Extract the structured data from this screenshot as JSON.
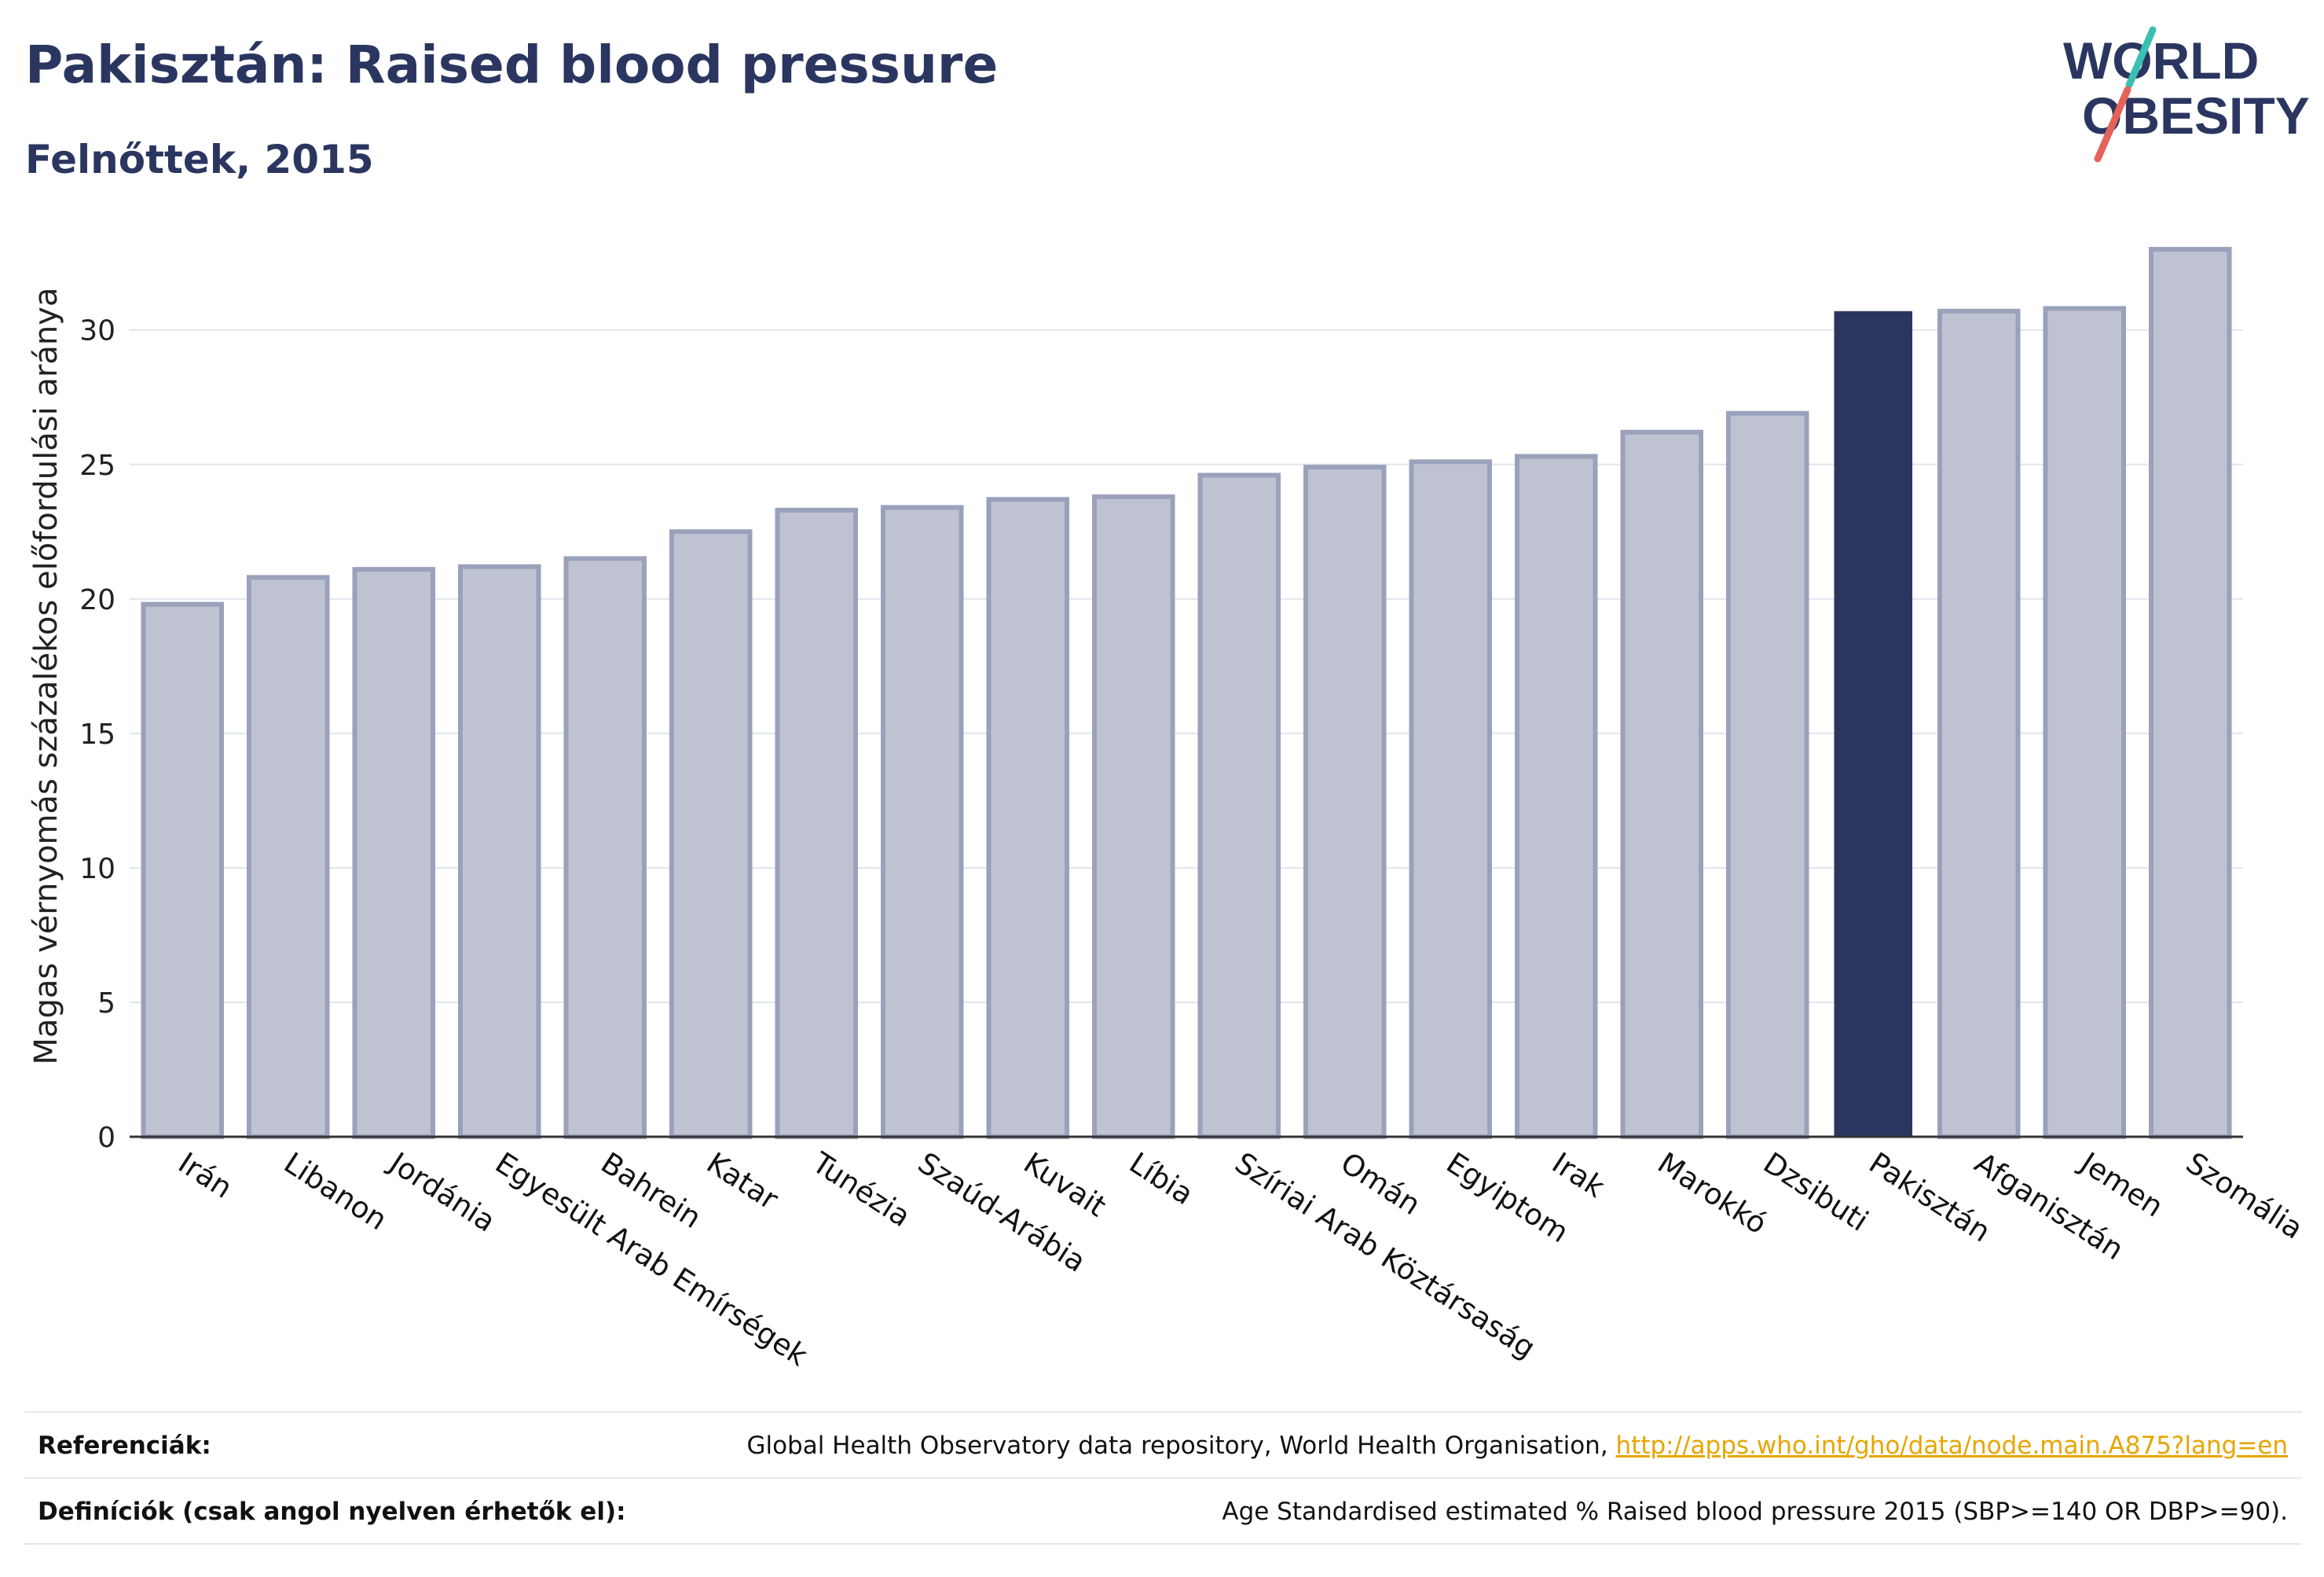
{
  "header": {
    "title": "Pakisztán: Raised blood pressure",
    "subtitle": "Felnőttek, 2015"
  },
  "logo": {
    "line1": "WORLD",
    "line2": "OBESITY",
    "colors": {
      "text": "#2b3660",
      "slash_top": "#3bbfb4",
      "slash_bottom": "#e5635a"
    }
  },
  "chart_data": {
    "type": "bar",
    "ylabel": "Magas vérnyomás százalékos előfordulási aránya",
    "xlabel": "",
    "ylim": [
      0,
      33.5
    ],
    "yticks": [
      0,
      5,
      10,
      15,
      20,
      25,
      30
    ],
    "grid": true,
    "highlight": "Pakisztán",
    "colors": {
      "bar_fill": "#bfc3d1",
      "bar_stroke": "#9aa1bb",
      "highlight": "#2b3660",
      "grid": "#e3e5ec",
      "axis": "#333333"
    },
    "categories": [
      "Irán",
      "Libanon",
      "Jordánia",
      "Egyesült Arab Emírségek",
      "Bahrein",
      "Katar",
      "Tunézia",
      "Szaúd-Arábia",
      "Kuvait",
      "Líbia",
      "Szíriai Arab Köztársaság",
      "Omán",
      "Egyiptom",
      "Irak",
      "Marokkó",
      "Dzsibuti",
      "Pakisztán",
      "Afganisztán",
      "Jemen",
      "Szomália"
    ],
    "values": [
      19.8,
      20.8,
      21.1,
      21.2,
      21.5,
      22.5,
      23.3,
      23.4,
      23.7,
      23.8,
      24.6,
      24.9,
      25.1,
      25.3,
      26.2,
      26.9,
      30.7,
      30.7,
      30.8,
      33.0
    ]
  },
  "footer": {
    "references_label": "Referenciák:",
    "references_text": "Global Health Observatory data repository, World Health Organisation, ",
    "references_link": "http://apps.who.int/gho/data/node.main.A875?lang=en",
    "definitions_label": "Definíciók (csak angol nyelven érhetők el):",
    "definitions_text": "Age Standardised estimated % Raised blood pressure 2015 (SBP>=140 OR DBP>=90)."
  }
}
